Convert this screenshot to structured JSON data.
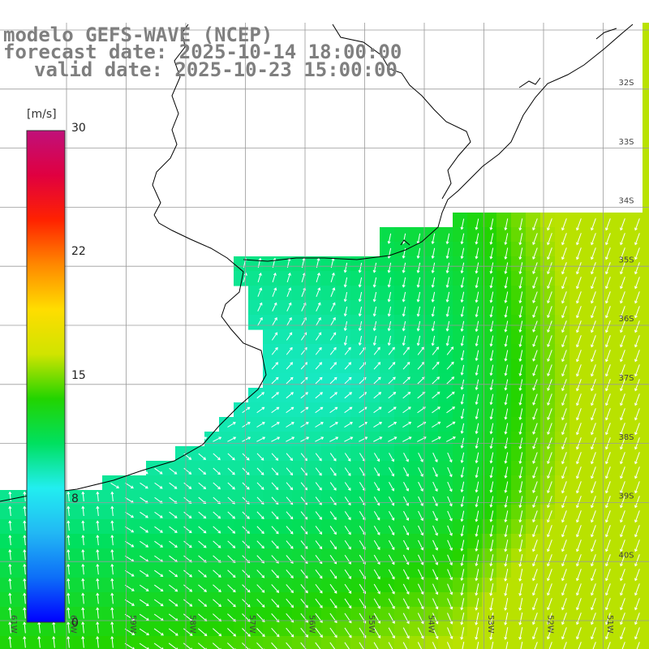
{
  "header": {
    "model": "modelo GEFS-WAVE (NCEP)",
    "forecast": "forecast date: 2025-10-14 18:00:00",
    "valid": "valid date: 2025-10-23 15:00:00"
  },
  "colorbar": {
    "unit": "[m/s]",
    "min": 0,
    "max": 30,
    "tick_labels": [
      "30",
      "22",
      "15",
      "8",
      "0"
    ],
    "colors": [
      "#0000ff",
      "#0d6ef8",
      "#22b8f4",
      "#22eef0",
      "#00e060",
      "#22d400",
      "#d0e400",
      "#ffdd00",
      "#ff8800",
      "#ff2200",
      "#e00040",
      "#c0107a"
    ]
  },
  "map": {
    "lat_labels": [
      "32S",
      "33S",
      "34S",
      "35S",
      "36S",
      "37S",
      "38S",
      "39S",
      "40S"
    ],
    "lon_labels": [
      "61W",
      "60W",
      "59W",
      "58W",
      "57W",
      "56W",
      "55W",
      "54W",
      "53W",
      "52W",
      "51W"
    ],
    "vector_color": "#ffffff",
    "coast_color": "#000000",
    "grid_color": "#9a9a9a"
  }
}
